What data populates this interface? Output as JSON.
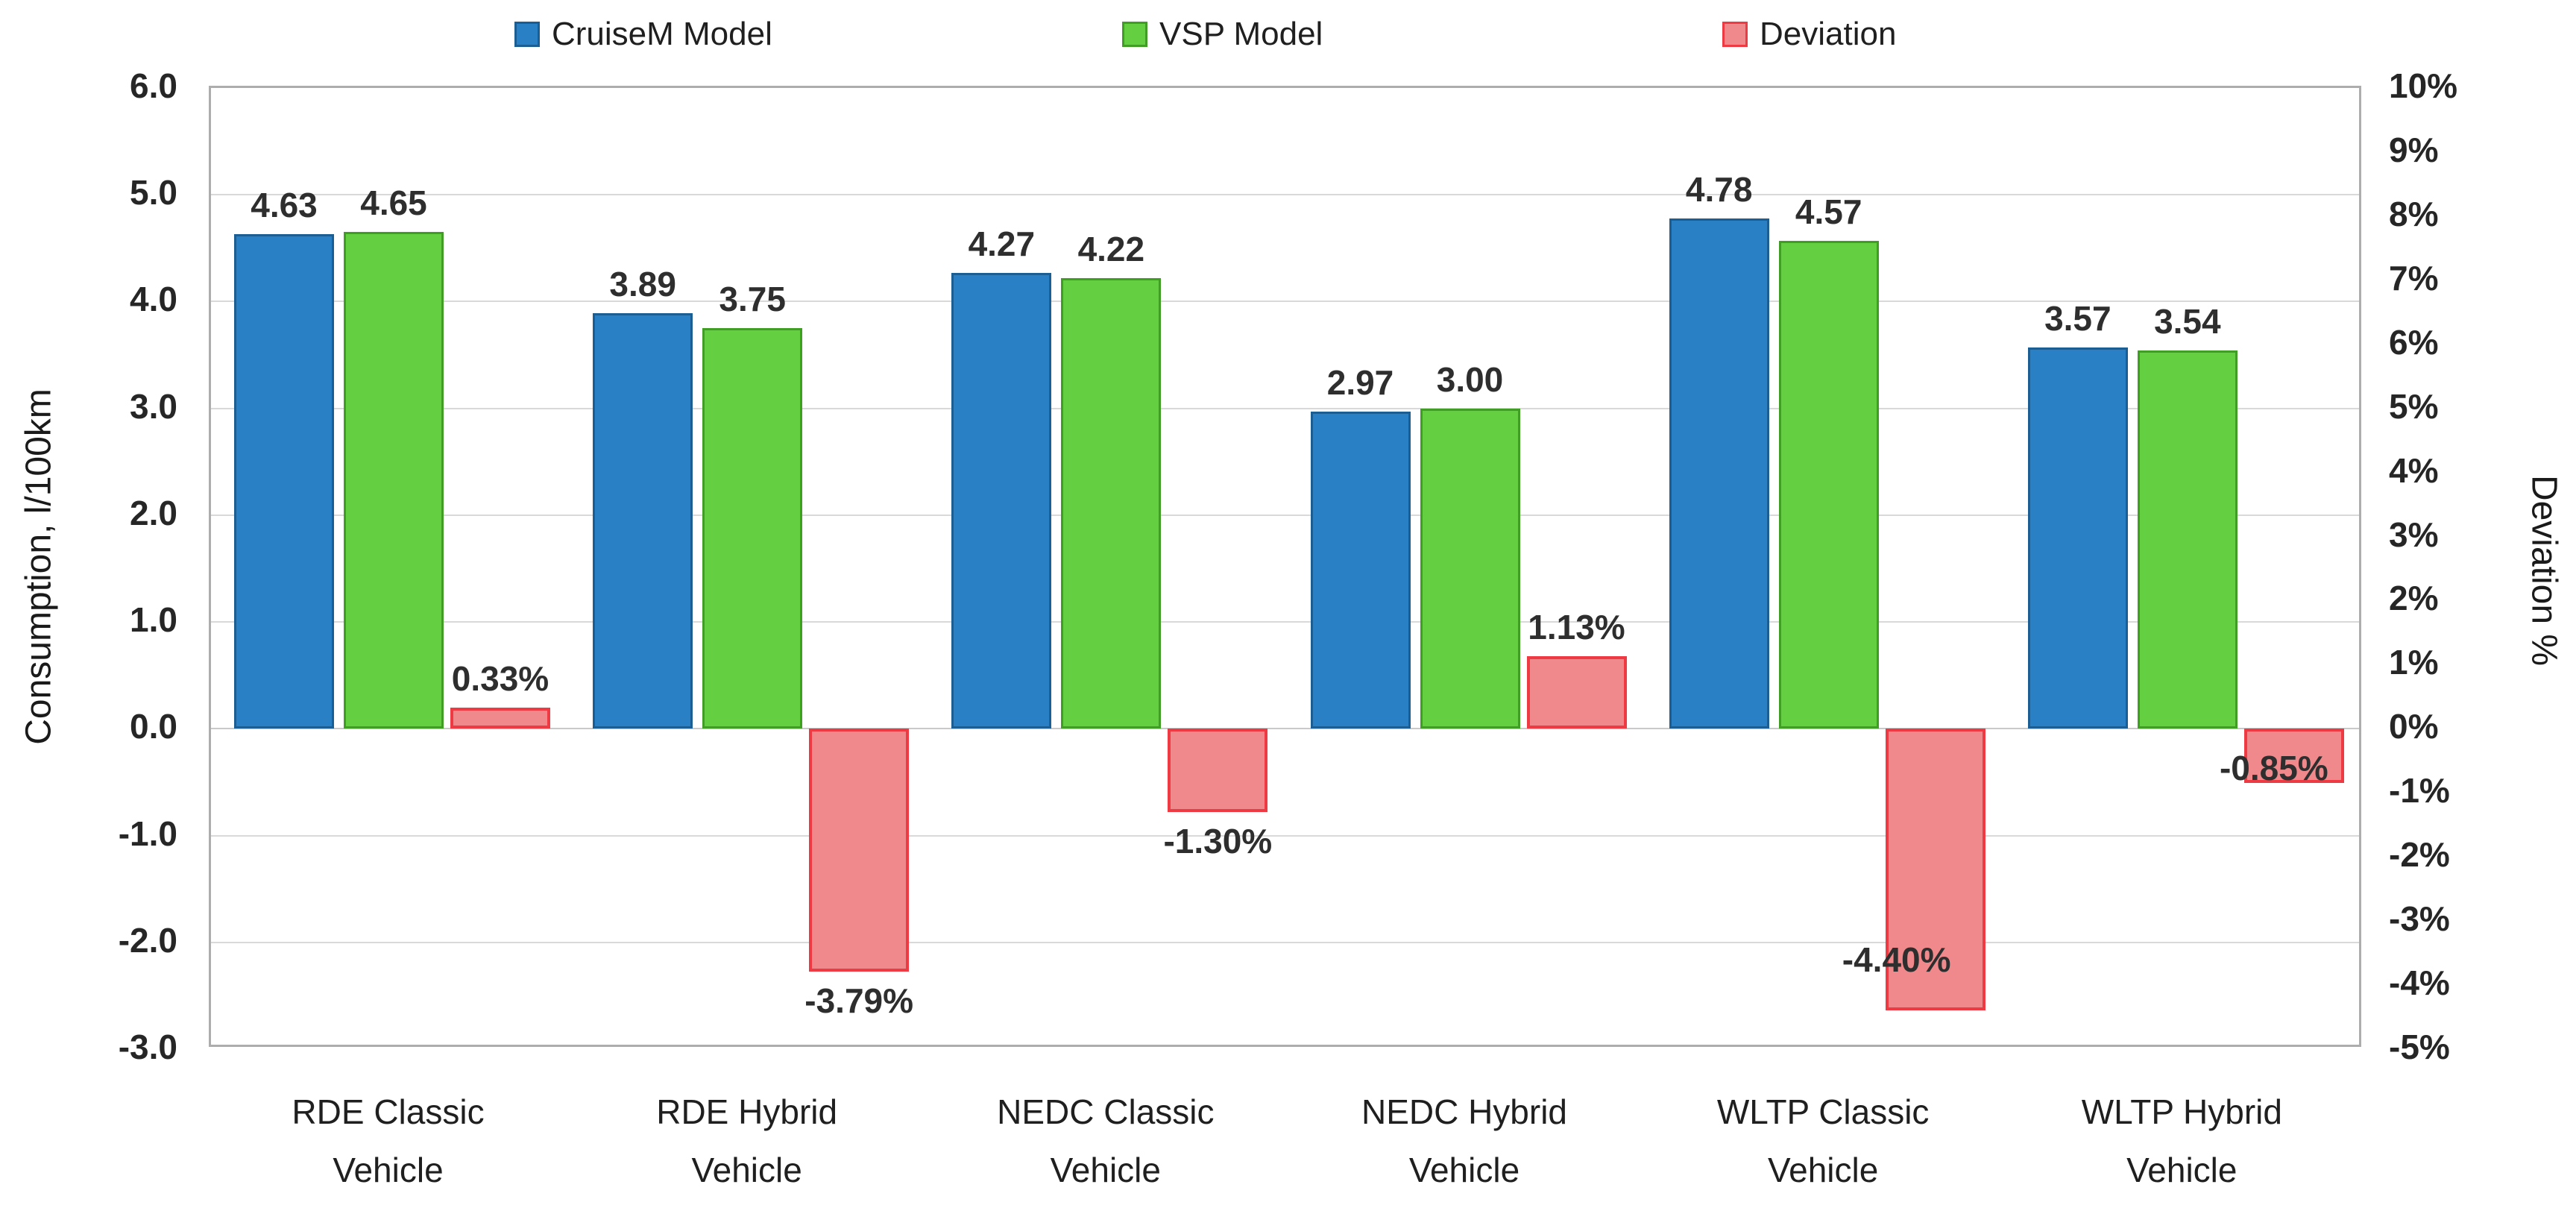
{
  "chart_data": {
    "type": "bar",
    "title": "",
    "categories": [
      "RDE Classic Vehicle",
      "RDE Hybrid Vehicle",
      "NEDC Classic Vehicle",
      "NEDC Hybrid Vehicle",
      "WLTP Classic Vehicle",
      "WLTP Hybrid Vehicle"
    ],
    "category_lines": [
      [
        "RDE Classic",
        "Vehicle"
      ],
      [
        "RDE Hybrid",
        "Vehicle"
      ],
      [
        "NEDC Classic",
        "Vehicle"
      ],
      [
        "NEDC Hybrid",
        "Vehicle"
      ],
      [
        "WLTP Classic",
        "Vehicle"
      ],
      [
        "WLTP Hybrid",
        "Vehicle"
      ]
    ],
    "series": [
      {
        "name": "CruiseM Model",
        "axis": "left",
        "color": "#2A80C5",
        "border_color": "#1B5E94",
        "values": [
          4.63,
          3.89,
          4.27,
          2.97,
          4.78,
          3.57
        ],
        "labels": [
          "4.63",
          "3.89",
          "4.27",
          "2.97",
          "4.78",
          "3.57"
        ]
      },
      {
        "name": "VSP Model",
        "axis": "left",
        "color": "#63CF41",
        "border_color": "#3F9E23",
        "values": [
          4.65,
          3.75,
          4.22,
          3.0,
          4.57,
          3.54
        ],
        "labels": [
          "4.65",
          "3.75",
          "4.22",
          "3.00",
          "4.57",
          "3.54"
        ]
      },
      {
        "name": "Deviation",
        "axis": "right",
        "color": "#F0898B",
        "border_color": "#EE3A42",
        "values": [
          0.33,
          -3.79,
          -1.3,
          1.13,
          -4.4,
          -0.85
        ],
        "labels": [
          "0.33%",
          "-3.79%",
          "-1.30%",
          "1.13%",
          "-4.40%",
          "-0.85%"
        ],
        "label_placement": [
          "above",
          "below",
          "below",
          "above",
          "inside-bottom",
          "on-bar-top"
        ]
      }
    ],
    "y_left": {
      "title": "Consumption, l/100km",
      "min": -3,
      "max": 6,
      "tick_labels": [
        "6.0",
        "5.0",
        "4.0",
        "3.0",
        "2.0",
        "1.0",
        "0.0",
        "-1.0",
        "-2.0",
        "-3.0"
      ]
    },
    "y_right": {
      "title": "Deviation %",
      "min": -5,
      "max": 10,
      "tick_labels": [
        "10%",
        "9%",
        "8%",
        "7%",
        "6%",
        "5%",
        "4%",
        "3%",
        "2%",
        "1%",
        "0%",
        "-1%",
        "-2%",
        "-3%",
        "-4%",
        "-5%"
      ]
    },
    "grid": true,
    "legend_position": "top"
  }
}
